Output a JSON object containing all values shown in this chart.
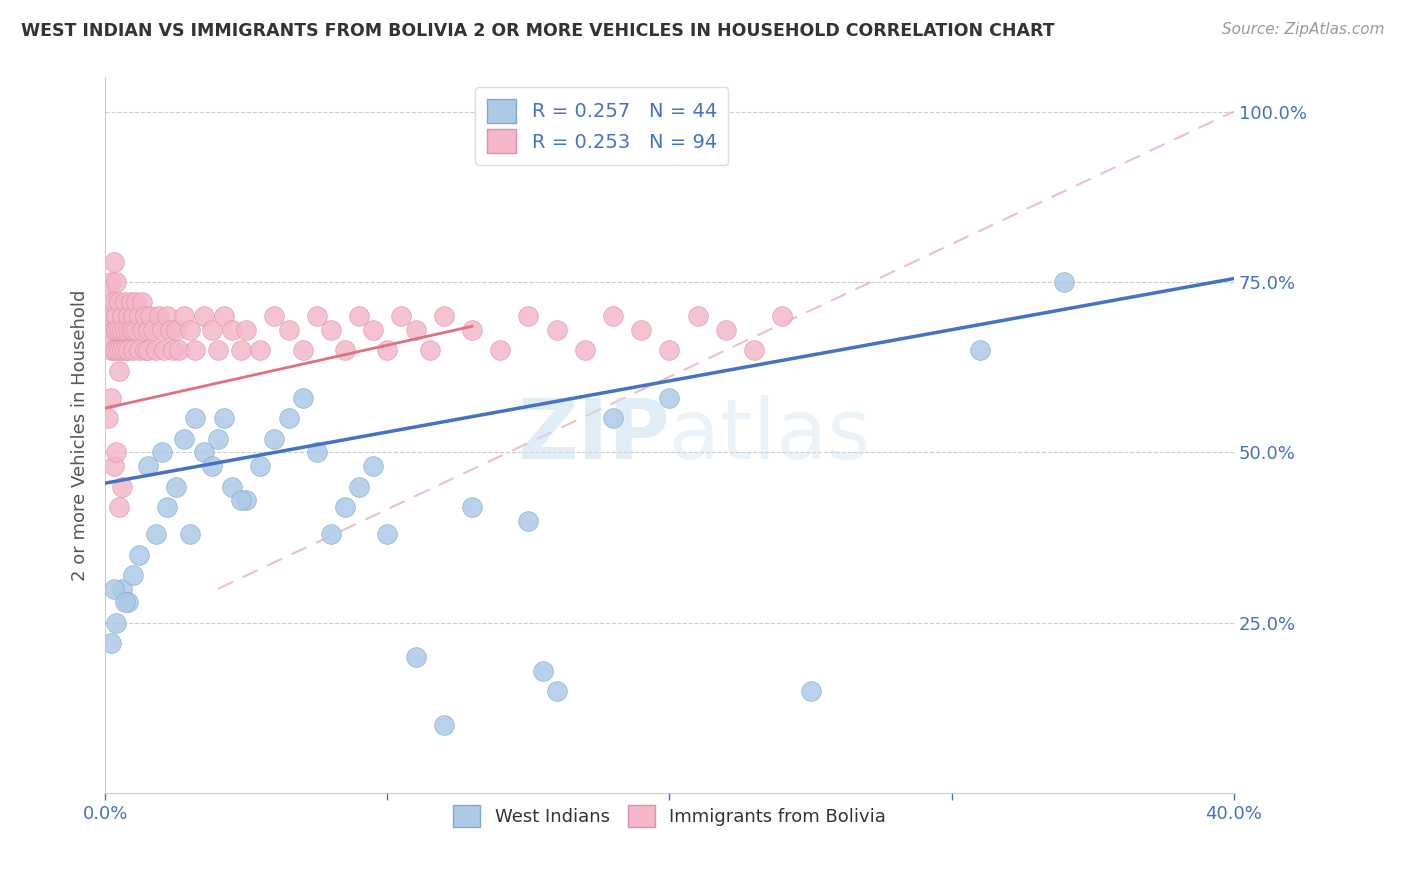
{
  "title": "WEST INDIAN VS IMMIGRANTS FROM BOLIVIA 2 OR MORE VEHICLES IN HOUSEHOLD CORRELATION CHART",
  "source": "Source: ZipAtlas.com",
  "ylabel": "2 or more Vehicles in Household",
  "legend_blue_label": "West Indians",
  "legend_pink_label": "Immigrants from Bolivia",
  "blue_color": "#aec9e8",
  "blue_edge_color": "#7aaad0",
  "pink_color": "#f4b8c8",
  "pink_edge_color": "#e090aa",
  "blue_line_color": "#4472c4",
  "pink_line_color": "#e07080",
  "pink_dash_color": "#e8b0bc",
  "grid_color": "#cccccc",
  "watermark_color": "#c8dff0",
  "title_color": "#333333",
  "source_color": "#999999",
  "tick_color": "#4472c4",
  "ylabel_color": "#555555",
  "xlim": [
    0.0,
    0.4
  ],
  "ylim": [
    0.0,
    1.05
  ],
  "blue_x": [
    0.002,
    0.004,
    0.006,
    0.008,
    0.01,
    0.012,
    0.015,
    0.018,
    0.02,
    0.022,
    0.025,
    0.028,
    0.03,
    0.032,
    0.035,
    0.038,
    0.04,
    0.042,
    0.045,
    0.05,
    0.055,
    0.06,
    0.065,
    0.07,
    0.075,
    0.08,
    0.085,
    0.09,
    0.095,
    0.1,
    0.11,
    0.12,
    0.13,
    0.15,
    0.16,
    0.18,
    0.2,
    0.25,
    0.31,
    0.34,
    0.003,
    0.007,
    0.048,
    0.155
  ],
  "blue_y": [
    0.22,
    0.25,
    0.3,
    0.28,
    0.32,
    0.35,
    0.48,
    0.38,
    0.5,
    0.42,
    0.45,
    0.52,
    0.38,
    0.55,
    0.5,
    0.48,
    0.52,
    0.55,
    0.45,
    0.43,
    0.48,
    0.52,
    0.55,
    0.58,
    0.5,
    0.38,
    0.42,
    0.45,
    0.48,
    0.38,
    0.2,
    0.1,
    0.42,
    0.4,
    0.15,
    0.55,
    0.58,
    0.15,
    0.65,
    0.75,
    0.3,
    0.28,
    0.43,
    0.18
  ],
  "pink_x": [
    0.001,
    0.001,
    0.002,
    0.002,
    0.002,
    0.003,
    0.003,
    0.003,
    0.003,
    0.004,
    0.004,
    0.004,
    0.004,
    0.005,
    0.005,
    0.005,
    0.005,
    0.006,
    0.006,
    0.006,
    0.007,
    0.007,
    0.007,
    0.008,
    0.008,
    0.008,
    0.009,
    0.009,
    0.01,
    0.01,
    0.01,
    0.011,
    0.011,
    0.012,
    0.012,
    0.013,
    0.013,
    0.014,
    0.014,
    0.015,
    0.015,
    0.016,
    0.017,
    0.018,
    0.019,
    0.02,
    0.021,
    0.022,
    0.023,
    0.024,
    0.025,
    0.026,
    0.028,
    0.03,
    0.032,
    0.035,
    0.038,
    0.04,
    0.042,
    0.045,
    0.048,
    0.05,
    0.055,
    0.06,
    0.065,
    0.07,
    0.075,
    0.08,
    0.085,
    0.09,
    0.095,
    0.1,
    0.105,
    0.11,
    0.115,
    0.12,
    0.13,
    0.14,
    0.15,
    0.16,
    0.17,
    0.18,
    0.19,
    0.2,
    0.21,
    0.22,
    0.23,
    0.24,
    0.001,
    0.002,
    0.003,
    0.004,
    0.005,
    0.006
  ],
  "pink_y": [
    0.72,
    0.68,
    0.75,
    0.7,
    0.65,
    0.78,
    0.72,
    0.68,
    0.65,
    0.75,
    0.7,
    0.68,
    0.65,
    0.72,
    0.68,
    0.65,
    0.62,
    0.7,
    0.68,
    0.65,
    0.72,
    0.68,
    0.65,
    0.7,
    0.68,
    0.65,
    0.72,
    0.68,
    0.7,
    0.68,
    0.65,
    0.72,
    0.68,
    0.7,
    0.65,
    0.72,
    0.68,
    0.7,
    0.65,
    0.68,
    0.65,
    0.7,
    0.68,
    0.65,
    0.7,
    0.68,
    0.65,
    0.7,
    0.68,
    0.65,
    0.68,
    0.65,
    0.7,
    0.68,
    0.65,
    0.7,
    0.68,
    0.65,
    0.7,
    0.68,
    0.65,
    0.68,
    0.65,
    0.7,
    0.68,
    0.65,
    0.7,
    0.68,
    0.65,
    0.7,
    0.68,
    0.65,
    0.7,
    0.68,
    0.65,
    0.7,
    0.68,
    0.65,
    0.7,
    0.68,
    0.65,
    0.7,
    0.68,
    0.65,
    0.7,
    0.68,
    0.65,
    0.7,
    0.55,
    0.58,
    0.48,
    0.5,
    0.42,
    0.45
  ],
  "blue_line_x": [
    0.0,
    0.4
  ],
  "blue_line_y": [
    0.455,
    0.755
  ],
  "pink_line_x": [
    0.0,
    0.13
  ],
  "pink_line_y": [
    0.565,
    0.685
  ],
  "dash_line_x": [
    0.04,
    0.4
  ],
  "dash_line_y": [
    0.3,
    1.0
  ]
}
